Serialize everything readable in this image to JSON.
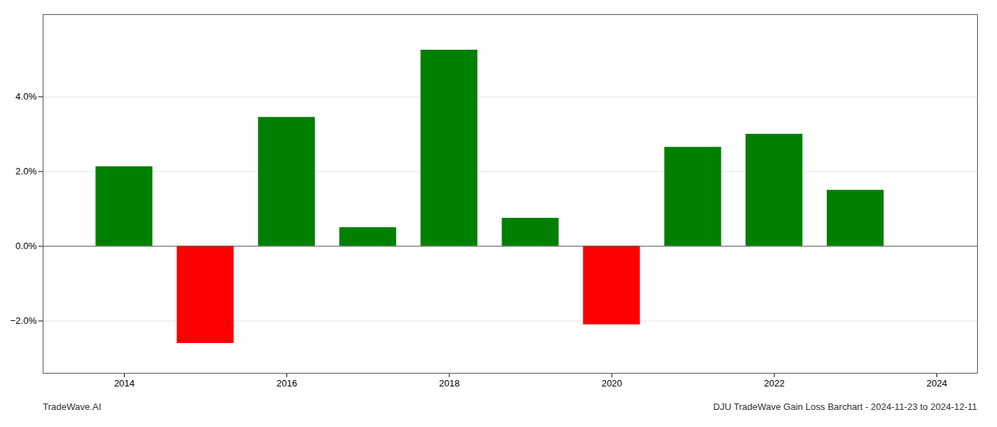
{
  "chart_data": {
    "type": "bar",
    "title": "DJU TradeWave Gain Loss Barchart - 2024-11-23 to 2024-12-11",
    "annotations": [
      "TradeWave.AI"
    ],
    "x": [
      2014,
      2015,
      2016,
      2017,
      2018,
      2019,
      2020,
      2021,
      2022,
      2023
    ],
    "values": [
      0.0213,
      -0.026,
      0.0345,
      0.005,
      0.0525,
      0.0075,
      -0.021,
      0.0265,
      0.03,
      0.015
    ],
    "colors": [
      "#008000",
      "#ff0000",
      "#008000",
      "#008000",
      "#008000",
      "#008000",
      "#ff0000",
      "#008000",
      "#008000",
      "#008000"
    ],
    "xlim": [
      2013.0,
      2024.5
    ],
    "xticks": [
      2014,
      2016,
      2018,
      2020,
      2022,
      2024
    ],
    "ylim": [
      -0.034,
      0.062
    ],
    "yticks": [
      {
        "value": -0.02,
        "label": "−2.0%"
      },
      {
        "value": 0.0,
        "label": "0.0%"
      },
      {
        "value": 0.02,
        "label": "2.0%"
      },
      {
        "value": 0.04,
        "label": "4.0%"
      }
    ],
    "grid": true
  }
}
